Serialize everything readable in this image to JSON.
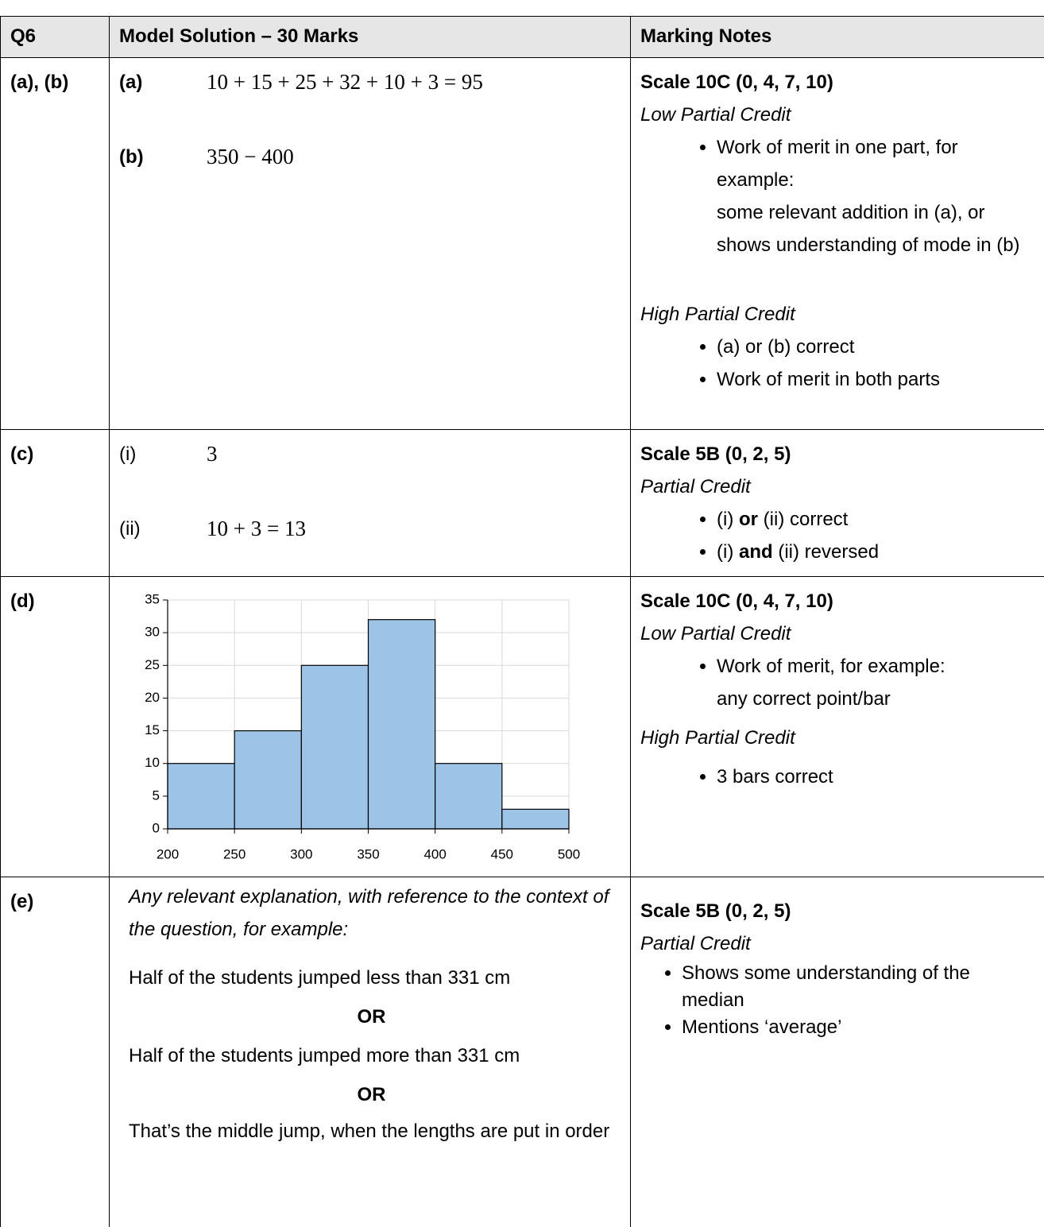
{
  "header": {
    "part": "Q6",
    "solution": "Model Solution – 30 Marks",
    "notes": "Marking Notes"
  },
  "rows": [
    {
      "part": "(a), (b)",
      "solution": [
        {
          "label": "(a)",
          "answer": "10 + 15 + 25 + 32 + 10 + 3 = 95"
        },
        {
          "label": "(b)",
          "answer": "350 − 400"
        }
      ],
      "notes": {
        "scale": "Scale 10C (0, 4, 7, 10)",
        "credits": [
          {
            "heading": "Low Partial Credit",
            "items": [
              {
                "text": "Work of merit in one part, for example:",
                "detail": "some relevant addition in (a), or shows understanding of mode in (b)"
              }
            ]
          },
          {
            "heading": "High Partial Credit",
            "items": [
              {
                "text": "(a) or (b) correct"
              },
              {
                "text": "Work of merit in both parts"
              }
            ]
          }
        ]
      }
    },
    {
      "part": "(c)",
      "solution": [
        {
          "label": "(i)",
          "answer": "3"
        },
        {
          "label": "(ii)",
          "answer": "10 + 3 = 13"
        }
      ],
      "notes": {
        "scale": "Scale 5B (0, 2, 5)",
        "credits": [
          {
            "heading": "Partial Credit",
            "items": [
              {
                "parts": [
                  "(i)",
                  "or",
                  "(ii) correct"
                ]
              },
              {
                "parts": [
                  "(i)",
                  "and",
                  "(ii) reversed"
                ]
              }
            ]
          }
        ]
      }
    },
    {
      "part": "(d)",
      "notes": {
        "scale": "Scale 10C (0, 4, 7, 10)",
        "credits": [
          {
            "heading": "Low Partial Credit",
            "items": [
              {
                "text": "Work of merit, for example:",
                "detail": "any correct point/bar"
              }
            ]
          },
          {
            "heading": "High Partial Credit",
            "items": [
              {
                "text": "3 bars correct"
              }
            ]
          }
        ]
      }
    },
    {
      "part": "(e)",
      "solution": {
        "intro": "Any relevant explanation, with reference to the context of the question, for example:",
        "answers": [
          "Half of the students jumped less than 331 cm",
          "Half of the students jumped more than 331 cm",
          "That’s the middle jump, when the lengths are put in order"
        ],
        "separator": "OR"
      },
      "notes": {
        "scale": "Scale 5B (0, 2, 5)",
        "credits": [
          {
            "heading": "Partial Credit",
            "items": [
              {
                "text": "Shows some understanding of the median"
              },
              {
                "text": "Mentions ‘average’"
              }
            ]
          }
        ]
      }
    }
  ],
  "chart_data": {
    "type": "histogram",
    "bins": [
      200,
      250,
      300,
      350,
      400,
      450,
      500
    ],
    "values": [
      10,
      15,
      25,
      32,
      10,
      3
    ],
    "color": "#9dc3e6",
    "xlim": [
      200,
      500
    ],
    "ylim": [
      0,
      35
    ],
    "xticks": [
      200,
      250,
      300,
      350,
      400,
      450,
      500
    ],
    "yticks": [
      0,
      5,
      10,
      15,
      20,
      25,
      30,
      35
    ],
    "grid": true
  }
}
